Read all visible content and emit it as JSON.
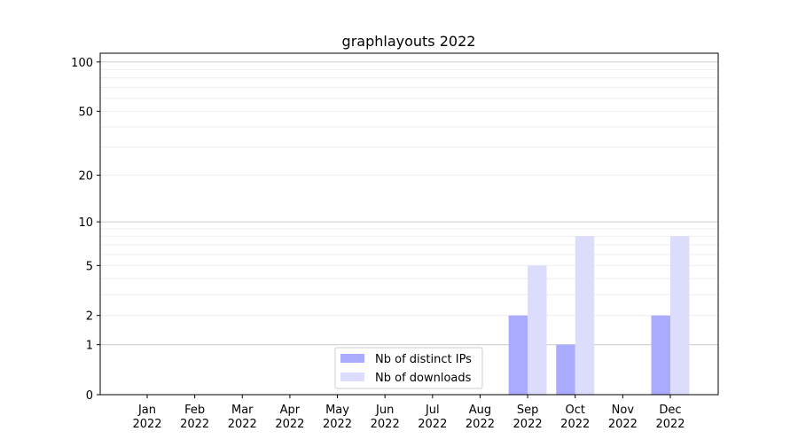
{
  "chart_data": {
    "type": "bar",
    "title": "graphlayouts 2022",
    "xlabel": "",
    "ylabel": "",
    "yscale": "log(1+y)",
    "ylim": [
      0,
      113
    ],
    "yticks": [
      0,
      1,
      2,
      5,
      10,
      20,
      50,
      100
    ],
    "grid": true,
    "legend_position": "lower-center",
    "categories": [
      "Jan\n2022",
      "Feb\n2022",
      "Mar\n2022",
      "Apr\n2022",
      "May\n2022",
      "Jun\n2022",
      "Jul\n2022",
      "Aug\n2022",
      "Sep\n2022",
      "Oct\n2022",
      "Nov\n2022",
      "Dec\n2022"
    ],
    "series": [
      {
        "name": "Nb of distinct IPs",
        "color": "#aaaaff",
        "values": [
          0,
          0,
          0,
          0,
          0,
          0,
          0,
          0,
          2,
          1,
          0,
          2
        ]
      },
      {
        "name": "Nb of downloads",
        "color": "#dcdcfc",
        "values": [
          0,
          0,
          0,
          0,
          0,
          0,
          0,
          0,
          5,
          8,
          0,
          8
        ]
      }
    ]
  }
}
